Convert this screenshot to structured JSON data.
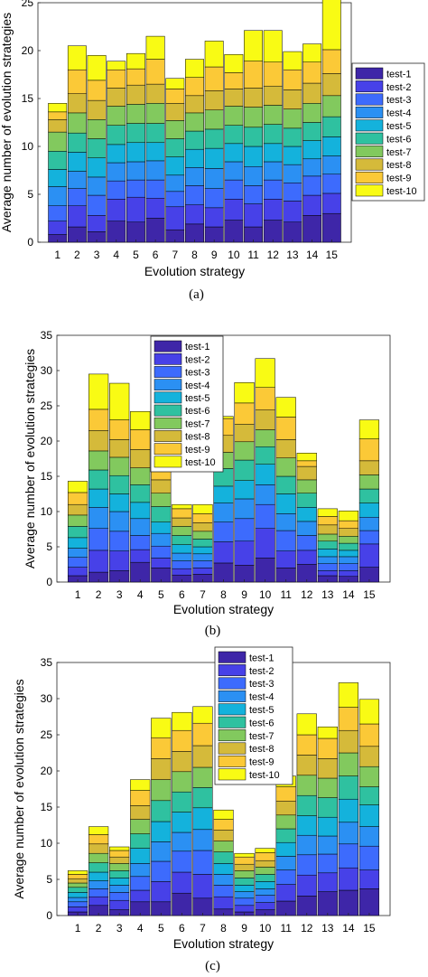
{
  "colors": {
    "test-1": "#3e26a8",
    "test-2": "#4741e8",
    "test-3": "#3d6bfd",
    "test-4": "#2b90f3",
    "test-5": "#14b2dc",
    "test-6": "#2fc1a0",
    "test-7": "#82c95e",
    "test-8": "#d5ba3a",
    "test-9": "#fbc937",
    "test-10": "#f9fb14"
  },
  "chart_data": [
    {
      "type": "bar",
      "stacked": true,
      "panel_label": "(a)",
      "xlabel": "Evolution strategy",
      "ylabel": "Average number of evolution strategies",
      "categories": [
        "1",
        "2",
        "3",
        "4",
        "5",
        "6",
        "7",
        "8",
        "9",
        "10",
        "11",
        "12",
        "13",
        "14",
        "15"
      ],
      "ylim": [
        0,
        25
      ],
      "yticks": [
        0,
        5,
        10,
        15,
        20,
        25
      ],
      "legend_position": "right-outside",
      "series": [
        {
          "name": "test-1",
          "values": [
            0.8,
            1.6,
            1.1,
            2.2,
            2.1,
            2.5,
            1.3,
            1.9,
            1.6,
            2.3,
            1.6,
            2.3,
            2.1,
            2.8,
            3.0
          ]
        },
        {
          "name": "test-2",
          "values": [
            1.4,
            2.2,
            1.7,
            2.3,
            2.6,
            2.1,
            2.4,
            2.0,
            2.0,
            2.2,
            2.4,
            2.2,
            2.2,
            2.1,
            2.1
          ]
        },
        {
          "name": "test-3",
          "values": [
            1.6,
            1.8,
            2.1,
            1.9,
            1.8,
            1.9,
            1.6,
            2.0,
            2.0,
            2.0,
            1.9,
            2.0,
            1.9,
            2.0,
            2.0
          ]
        },
        {
          "name": "test-4",
          "values": [
            2.0,
            1.8,
            1.9,
            1.9,
            1.9,
            2.0,
            1.7,
            1.9,
            2.1,
            1.9,
            2.0,
            1.9,
            1.9,
            1.8,
            1.9
          ]
        },
        {
          "name": "test-5",
          "values": [
            1.8,
            2.0,
            2.0,
            1.9,
            2.0,
            1.9,
            1.9,
            1.9,
            2.1,
            1.9,
            2.1,
            1.9,
            1.9,
            1.9,
            2.0
          ]
        },
        {
          "name": "test-6",
          "values": [
            1.9,
            2.0,
            2.0,
            2.0,
            2.0,
            2.0,
            1.9,
            1.9,
            2.0,
            1.9,
            2.0,
            2.0,
            1.9,
            1.9,
            2.1
          ]
        },
        {
          "name": "test-7",
          "values": [
            2.0,
            2.1,
            2.0,
            2.0,
            2.0,
            2.1,
            1.9,
            1.9,
            2.0,
            2.0,
            2.1,
            2.0,
            2.0,
            2.0,
            2.2
          ]
        },
        {
          "name": "test-8",
          "values": [
            1.3,
            2.0,
            2.0,
            1.9,
            2.0,
            2.0,
            1.8,
            1.8,
            2.0,
            1.8,
            2.0,
            2.0,
            2.0,
            2.1,
            2.3
          ]
        },
        {
          "name": "test-9",
          "values": [
            0.8,
            2.5,
            2.1,
            1.9,
            1.7,
            2.6,
            1.5,
            1.9,
            2.5,
            1.7,
            2.8,
            2.5,
            2.1,
            2.2,
            2.5
          ]
        },
        {
          "name": "test-10",
          "values": [
            0.9,
            2.5,
            2.6,
            0.9,
            1.6,
            2.4,
            1.1,
            1.9,
            2.7,
            1.9,
            3.2,
            3.3,
            1.9,
            1.9,
            5.4
          ]
        }
      ]
    },
    {
      "type": "bar",
      "stacked": true,
      "panel_label": "(b)",
      "xlabel": "Evolution strategy",
      "ylabel": "Average number of evolution strategies",
      "categories": [
        "1",
        "2",
        "3",
        "4",
        "5",
        "6",
        "7",
        "8",
        "9",
        "10",
        "11",
        "12",
        "13",
        "14",
        "15"
      ],
      "ylim": [
        0,
        35
      ],
      "yticks": [
        0,
        5,
        10,
        15,
        20,
        25,
        30,
        35
      ],
      "legend_position": "upper-left-inside",
      "series": [
        {
          "name": "test-1",
          "values": [
            0.9,
            1.4,
            1.6,
            2.8,
            2.0,
            1.0,
            1.1,
            2.7,
            2.4,
            3.4,
            2.0,
            2.5,
            0.9,
            0.8,
            2.1
          ]
        },
        {
          "name": "test-2",
          "values": [
            1.2,
            3.1,
            2.8,
            1.8,
            1.4,
            0.9,
            0.9,
            3.0,
            3.4,
            4.2,
            2.4,
            2.0,
            0.7,
            0.8,
            3.3
          ]
        },
        {
          "name": "test-3",
          "values": [
            1.4,
            3.1,
            2.8,
            2.0,
            1.7,
            1.1,
            1.0,
            2.8,
            3.2,
            3.4,
            2.9,
            2.1,
            1.0,
            1.0,
            1.9
          ]
        },
        {
          "name": "test-4",
          "values": [
            1.3,
            3.0,
            2.8,
            2.4,
            1.8,
            1.1,
            1.0,
            2.7,
            2.8,
            2.8,
            2.4,
            2.0,
            1.0,
            1.0,
            1.9
          ]
        },
        {
          "name": "test-5",
          "values": [
            1.5,
            2.6,
            2.5,
            2.3,
            1.6,
            1.2,
            1.0,
            2.4,
            2.6,
            2.9,
            2.8,
            2.0,
            1.1,
            0.9,
            2.0
          ]
        },
        {
          "name": "test-6",
          "values": [
            1.6,
            2.7,
            2.6,
            2.5,
            2.2,
            1.3,
            1.1,
            2.5,
            2.9,
            2.5,
            2.5,
            2.0,
            1.1,
            1.0,
            2.0
          ]
        },
        {
          "name": "test-7",
          "values": [
            1.6,
            2.7,
            2.6,
            2.4,
            1.9,
            1.3,
            1.1,
            2.3,
            2.6,
            2.4,
            2.6,
            1.9,
            1.0,
            1.0,
            2.0
          ]
        },
        {
          "name": "test-8",
          "values": [
            1.5,
            2.9,
            2.5,
            2.6,
            1.9,
            1.2,
            1.2,
            2.4,
            2.5,
            2.8,
            2.6,
            1.9,
            1.3,
            1.1,
            2.0
          ]
        },
        {
          "name": "test-9",
          "values": [
            1.7,
            3.0,
            2.8,
            2.8,
            1.9,
            1.3,
            1.3,
            2.4,
            3.0,
            3.2,
            3.2,
            0.8,
            1.2,
            1.1,
            3.1
          ]
        },
        {
          "name": "test-10",
          "values": [
            1.6,
            5.0,
            5.2,
            2.6,
            0.9,
            0.6,
            1.3,
            0.3,
            2.9,
            4.1,
            2.8,
            1.1,
            1.1,
            1.4,
            2.7
          ]
        }
      ]
    },
    {
      "type": "bar",
      "stacked": true,
      "panel_label": "(c)",
      "xlabel": "Evolution strategy",
      "ylabel": "Average number of evolution strategies",
      "categories": [
        "1",
        "2",
        "3",
        "4",
        "5",
        "6",
        "7",
        "8",
        "9",
        "10",
        "11",
        "12",
        "13",
        "14",
        "15"
      ],
      "ylim": [
        0,
        35
      ],
      "yticks": [
        0,
        5,
        10,
        15,
        20,
        25,
        30,
        35
      ],
      "legend_position": "upper-center-inside",
      "series": [
        {
          "name": "test-1",
          "values": [
            0.5,
            1.4,
            0.8,
            1.9,
            1.9,
            3.1,
            2.4,
            0.9,
            0.5,
            0.8,
            2.0,
            2.7,
            3.3,
            3.5,
            3.7
          ]
        },
        {
          "name": "test-2",
          "values": [
            0.7,
            1.2,
            1.3,
            1.6,
            2.8,
            2.9,
            3.3,
            1.7,
            0.9,
            1.0,
            2.3,
            2.9,
            2.6,
            3.1,
            2.6
          ]
        },
        {
          "name": "test-3",
          "values": [
            0.7,
            1.1,
            1.1,
            1.9,
            2.8,
            2.9,
            3.3,
            1.6,
            1.0,
            1.0,
            2.0,
            2.8,
            2.6,
            3.3,
            3.3
          ]
        },
        {
          "name": "test-4",
          "values": [
            0.6,
            1.1,
            1.0,
            1.8,
            2.7,
            2.6,
            2.9,
            1.5,
            0.9,
            0.9,
            1.9,
            2.7,
            2.5,
            3.0,
            2.7
          ]
        },
        {
          "name": "test-5",
          "values": [
            0.7,
            1.2,
            1.0,
            2.1,
            2.8,
            2.8,
            3.0,
            1.5,
            0.9,
            1.0,
            1.9,
            2.7,
            2.6,
            3.2,
            3.0
          ]
        },
        {
          "name": "test-6",
          "values": [
            0.7,
            1.3,
            1.0,
            2.0,
            2.9,
            2.8,
            2.8,
            1.6,
            1.0,
            1.0,
            1.9,
            2.8,
            2.7,
            3.2,
            2.5
          ]
        },
        {
          "name": "test-7",
          "values": [
            0.6,
            1.3,
            1.0,
            2.0,
            2.9,
            2.8,
            2.8,
            1.5,
            1.0,
            1.0,
            1.9,
            2.8,
            2.7,
            3.2,
            2.8
          ]
        },
        {
          "name": "test-8",
          "values": [
            0.6,
            1.3,
            0.9,
            1.9,
            2.9,
            2.8,
            3.0,
            1.5,
            0.9,
            0.9,
            1.9,
            2.8,
            2.7,
            3.1,
            2.8
          ]
        },
        {
          "name": "test-9",
          "values": [
            0.6,
            1.3,
            0.9,
            2.1,
            2.9,
            2.9,
            3.1,
            1.5,
            1.0,
            1.1,
            2.0,
            2.8,
            2.8,
            3.2,
            3.1
          ]
        },
        {
          "name": "test-10",
          "values": [
            0.5,
            1.1,
            0.5,
            1.5,
            2.7,
            2.5,
            2.3,
            1.3,
            0.5,
            0.6,
            1.5,
            2.9,
            1.6,
            3.4,
            3.4
          ]
        }
      ]
    }
  ]
}
